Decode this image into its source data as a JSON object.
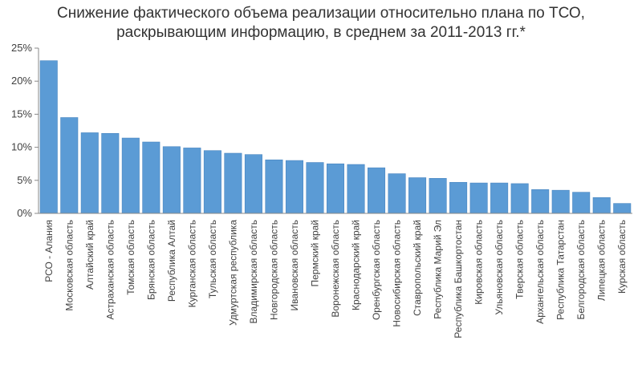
{
  "chart_data": {
    "type": "bar",
    "title_line1": "Снижение фактического объема реализации относительно плана по ТСО,",
    "title_line2": "раскрывающим информацию, в среднем за 2011-2013 гг.*",
    "categories": [
      "РСО - Алания",
      "Московская область",
      "Алтайский край",
      "Астраханская область",
      "Томская область",
      "Брянская область",
      "Республика Алтай",
      "Курганская область",
      "Тульская область",
      "Удмуртская республика",
      "Владимирская область",
      "Новгородская область",
      "Ивановская область",
      "Пермский край",
      "Воронежская область",
      "Краснодарский край",
      "Оренбургская область",
      "Новосибирская область",
      "Ставропольский край",
      "Республика Марий Эл",
      "Республика Башкортостан",
      "Кировская область",
      "Ульяновская область",
      "Тверская область",
      "Архангельская область",
      "Республика Татарстан",
      "Белгородская область",
      "Липецкая область",
      "Курская область"
    ],
    "values": [
      23.1,
      14.5,
      12.2,
      12.1,
      11.4,
      10.8,
      10.1,
      9.9,
      9.5,
      9.1,
      8.9,
      8.1,
      8.0,
      7.7,
      7.5,
      7.4,
      6.9,
      6.0,
      5.4,
      5.3,
      4.7,
      4.6,
      4.6,
      4.5,
      3.6,
      3.5,
      3.2,
      2.4,
      1.5
    ],
    "yticks": [
      0,
      5,
      10,
      15,
      20,
      25
    ],
    "ytick_labels": [
      "0%",
      "5%",
      "10%",
      "15%",
      "20%",
      "25%"
    ],
    "ylim": [
      0,
      25
    ],
    "xlabel": "",
    "ylabel": "",
    "grid": false,
    "bar_color": "#5b9bd5",
    "bar_border_color": "#4a86c0",
    "axis_color": "#888888"
  }
}
